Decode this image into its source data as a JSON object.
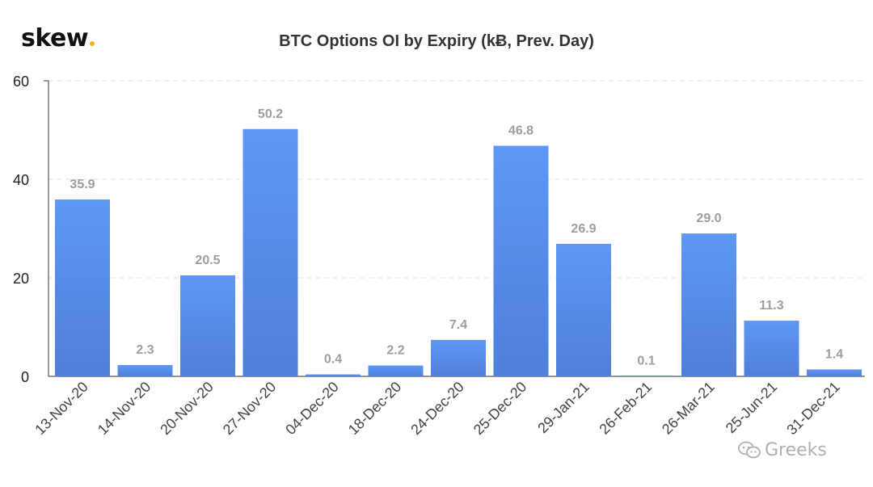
{
  "brand": {
    "name": "skew",
    "dot_color": "#f2b01e"
  },
  "watermark": "Greeks",
  "chart_data": {
    "type": "bar",
    "title": "BTC Options OI by Expiry (kɃ, Prev. Day)",
    "categories": [
      "13-Nov-20",
      "14-Nov-20",
      "20-Nov-20",
      "27-Nov-20",
      "04-Dec-20",
      "18-Dec-20",
      "24-Dec-20",
      "25-Dec-20",
      "29-Jan-21",
      "26-Feb-21",
      "26-Mar-21",
      "25-Jun-21",
      "31-Dec-21"
    ],
    "values": [
      35.9,
      2.3,
      20.5,
      50.2,
      0.4,
      2.2,
      7.4,
      46.8,
      26.9,
      0.1,
      29.0,
      11.3,
      1.4
    ],
    "value_labels": [
      "35.9",
      "2.3",
      "20.5",
      "50.2",
      "0.4",
      "2.2",
      "7.4",
      "46.8",
      "26.9",
      "0.1",
      "29.0",
      "11.3",
      "1.4"
    ],
    "ylim": [
      0,
      60
    ],
    "yticks": [
      "0",
      "20",
      "40",
      "60"
    ],
    "xlabel": "",
    "ylabel": "",
    "grid": true,
    "bar_color_top": "#5f97f7",
    "bar_color_bottom": "#4f7fd9",
    "label_color": "#9e9e9e"
  }
}
